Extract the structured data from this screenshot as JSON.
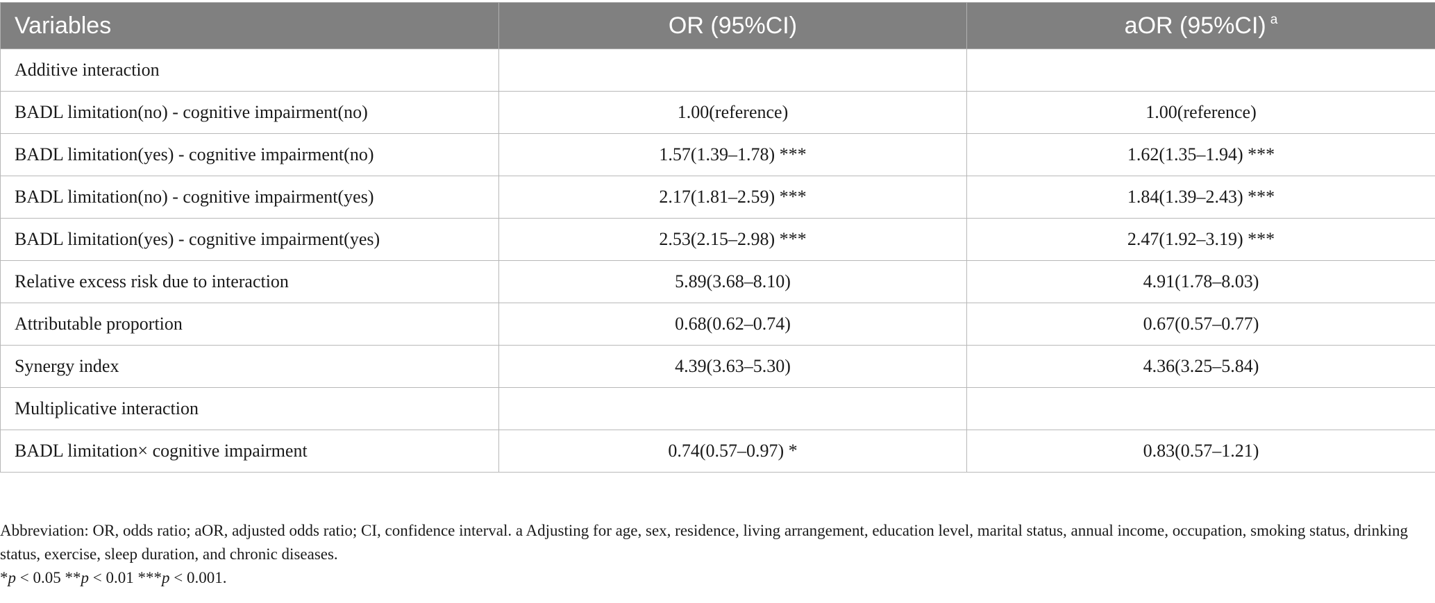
{
  "table": {
    "headers": [
      "Variables",
      "OR (95%CI)",
      "aOR (95%CI)"
    ],
    "header_note_marker": "a",
    "rows": [
      {
        "variable": "Additive interaction",
        "or": "",
        "aor": ""
      },
      {
        "variable": "BADL limitation(no) - cognitive impairment(no)",
        "or": "1.00(reference)",
        "aor": "1.00(reference)"
      },
      {
        "variable": "BADL limitation(yes) - cognitive impairment(no)",
        "or": "1.57(1.39–1.78) ***",
        "aor": "1.62(1.35–1.94) ***"
      },
      {
        "variable": "BADL limitation(no) - cognitive impairment(yes)",
        "or": "2.17(1.81–2.59) ***",
        "aor": "1.84(1.39–2.43) ***"
      },
      {
        "variable": "BADL limitation(yes) - cognitive impairment(yes)",
        "or": "2.53(2.15–2.98) ***",
        "aor": "2.47(1.92–3.19) ***"
      },
      {
        "variable": "Relative excess risk due to interaction",
        "or": "5.89(3.68–8.10)",
        "aor": "4.91(1.78–8.03)"
      },
      {
        "variable": "Attributable proportion",
        "or": "0.68(0.62–0.74)",
        "aor": "0.67(0.57–0.77)"
      },
      {
        "variable": "Synergy index",
        "or": "4.39(3.63–5.30)",
        "aor": "4.36(3.25–5.84)"
      },
      {
        "variable": "Multiplicative interaction",
        "or": "",
        "aor": ""
      },
      {
        "variable": "BADL limitation× cognitive impairment",
        "or": "0.74(0.57–0.97) *",
        "aor": "0.83(0.57–1.21)"
      }
    ]
  },
  "footnote": {
    "abbreviation": "Abbreviation: OR, odds ratio; aOR, adjusted odds ratio; CI, confidence interval. a Adjusting for age, sex, residence, living arrangement, education level, marital status, annual income, occupation, smoking status, drinking status, exercise, sleep duration, and chronic diseases.",
    "significance": {
      "s1_stars": "*",
      "s1_rest": " < 0.05 ",
      "s2_stars": "**",
      "s2_rest": " < 0.01 ",
      "s3_stars": "***",
      "s3_rest": " < 0.001.",
      "p": "p"
    }
  },
  "colors": {
    "header_bg": "#808080",
    "header_text": "#ffffff",
    "border": "#b8b8b8"
  }
}
